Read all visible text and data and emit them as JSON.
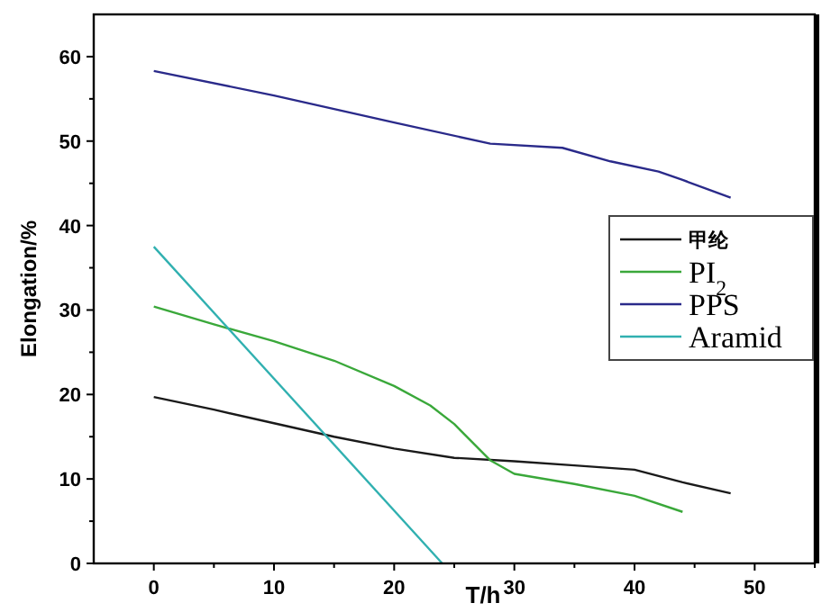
{
  "chart_data": {
    "type": "line",
    "xlabel": "T/h",
    "ylabel": "Elongation/%",
    "xlim": [
      -5,
      55
    ],
    "ylim": [
      0,
      65
    ],
    "xticks": [
      0,
      10,
      20,
      30,
      40,
      50
    ],
    "yticks": [
      0,
      10,
      20,
      30,
      40,
      50,
      60
    ],
    "legend": "right",
    "marker": "none",
    "line_style": "solid",
    "grid": false,
    "series": [
      {
        "name": "甲纶",
        "color": "#1a1a1a",
        "x": [
          0,
          5,
          10,
          15,
          20,
          25,
          30,
          35,
          40,
          44,
          48
        ],
        "values": [
          19.7,
          18.2,
          16.6,
          15.0,
          13.6,
          12.5,
          12.1,
          11.6,
          11.1,
          9.6,
          8.3
        ]
      },
      {
        "name": "PI$_{2}$",
        "color": "#3aa83a",
        "x": [
          0,
          5,
          10,
          15,
          20,
          23,
          25,
          28,
          30,
          35,
          40,
          44
        ],
        "values": [
          30.4,
          28.3,
          26.3,
          24.0,
          21.0,
          18.7,
          16.5,
          12.2,
          10.6,
          9.4,
          8.0,
          6.1
        ]
      },
      {
        "name": "PPS",
        "color": "#2a2a8a",
        "x": [
          0,
          10,
          20,
          28,
          34,
          38,
          42,
          44,
          48
        ],
        "values": [
          58.3,
          55.4,
          52.2,
          49.7,
          49.2,
          47.6,
          46.4,
          45.4,
          43.3
        ]
      },
      {
        "name": "Aramid",
        "color": "#30b0b0",
        "x": [
          0,
          24
        ],
        "values": [
          37.5,
          0
        ]
      }
    ]
  }
}
